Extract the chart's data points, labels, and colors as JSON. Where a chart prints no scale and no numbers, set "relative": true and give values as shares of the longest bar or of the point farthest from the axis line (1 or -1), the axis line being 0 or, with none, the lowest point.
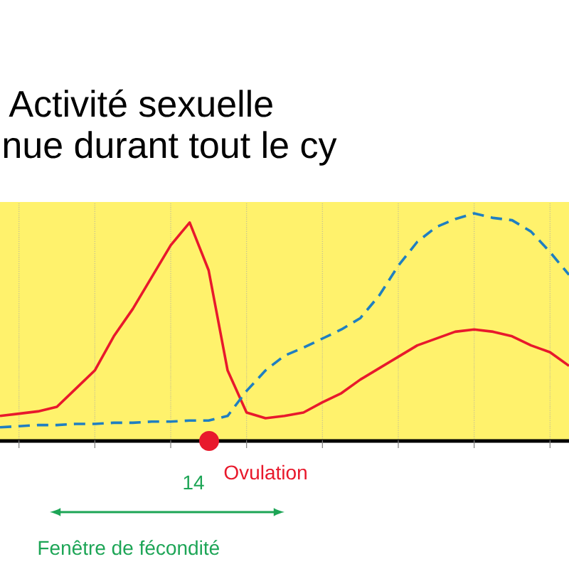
{
  "chart_data": {
    "type": "line",
    "title": "Activité sexuelle",
    "subtitle": "nue durant tout le cy",
    "relative": true,
    "grid": "x",
    "marker": "none",
    "categories": [
      null,
      null,
      null,
      null,
      null,
      null,
      null,
      null,
      null,
      null,
      null,
      null,
      null,
      null,
      null,
      null,
      null,
      null,
      null,
      null,
      null,
      null,
      null,
      null,
      null,
      null,
      null,
      null,
      null,
      null,
      null
    ],
    "series": [
      {
        "color": "#e8192c",
        "line_style": "solid",
        "values": [
          0.11,
          0.12,
          0.13,
          0.15,
          0.23,
          0.31,
          0.46,
          0.58,
          0.72,
          0.86,
          0.96,
          0.75,
          0.31,
          0.125,
          0.1,
          0.11,
          0.125,
          0.17,
          0.21,
          0.27,
          0.32,
          0.37,
          0.42,
          0.45,
          0.48,
          0.49,
          0.48,
          0.46,
          0.42,
          0.39,
          0.33
        ]
      },
      {
        "color": "#1f7fc1",
        "line_style": "dashed",
        "values": [
          0.06,
          0.065,
          0.07,
          0.07,
          0.075,
          0.075,
          0.08,
          0.08,
          0.085,
          0.085,
          0.09,
          0.09,
          0.11,
          0.22,
          0.31,
          0.375,
          0.41,
          0.45,
          0.49,
          0.54,
          0.64,
          0.77,
          0.875,
          0.94,
          0.975,
          1.0,
          0.98,
          0.97,
          0.92,
          0.83,
          0.73
        ]
      }
    ],
    "annotations": [
      "Fenêtre de fécondité",
      "14",
      "Ovulation"
    ]
  }
}
